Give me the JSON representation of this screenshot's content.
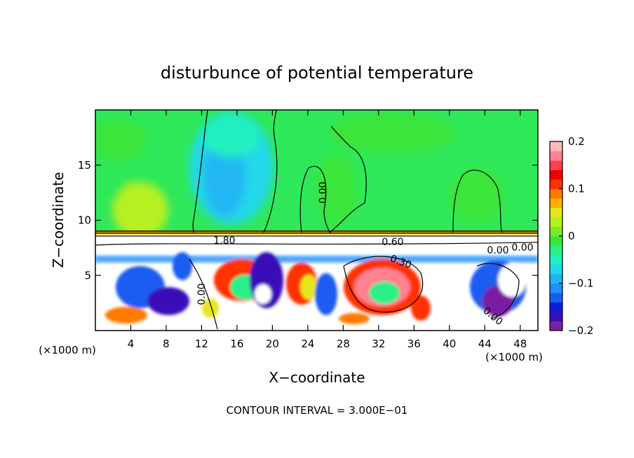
{
  "chart_data": {
    "type": "heatmap",
    "title": "disturbunce of potential temperature",
    "xlabel": "X−coordinate",
    "ylabel": "Z−coordinate",
    "x_unit_left": "(×1000 m)",
    "x_unit_right": "(×1000 m)",
    "footer": "CONTOUR INTERVAL = 3.000E−01",
    "xlim": [
      0,
      50
    ],
    "ylim": [
      0,
      20
    ],
    "x_ticks": [
      4,
      8,
      12,
      16,
      20,
      24,
      28,
      32,
      36,
      40,
      44,
      48
    ],
    "y_ticks": [
      5,
      10,
      15
    ],
    "colorbar": {
      "min": -0.2,
      "max": 0.2,
      "ticks": [
        0.2,
        0.1,
        0,
        -0.1,
        -0.2
      ],
      "tick_labels": [
        "0.2",
        "0.1",
        "0",
        "−0.1",
        "−0.2"
      ],
      "colors": [
        "#7a1fa2",
        "#3b0fb8",
        "#0a1eda",
        "#1a5cf0",
        "#1e90ff",
        "#20b6f2",
        "#22d8ea",
        "#22f0c0",
        "#2af08a",
        "#3ae53a",
        "#78ec28",
        "#b6f020",
        "#e6e61e",
        "#ffb000",
        "#ff7a00",
        "#ff3000",
        "#f00000",
        "#ff4050",
        "#ff8090",
        "#ffb6bc"
      ]
    },
    "contour_labels": [
      "0.00",
      "0.00",
      "0.60",
      "0.30",
      "1.80",
      "0.00",
      "0.00",
      "0.00"
    ]
  }
}
